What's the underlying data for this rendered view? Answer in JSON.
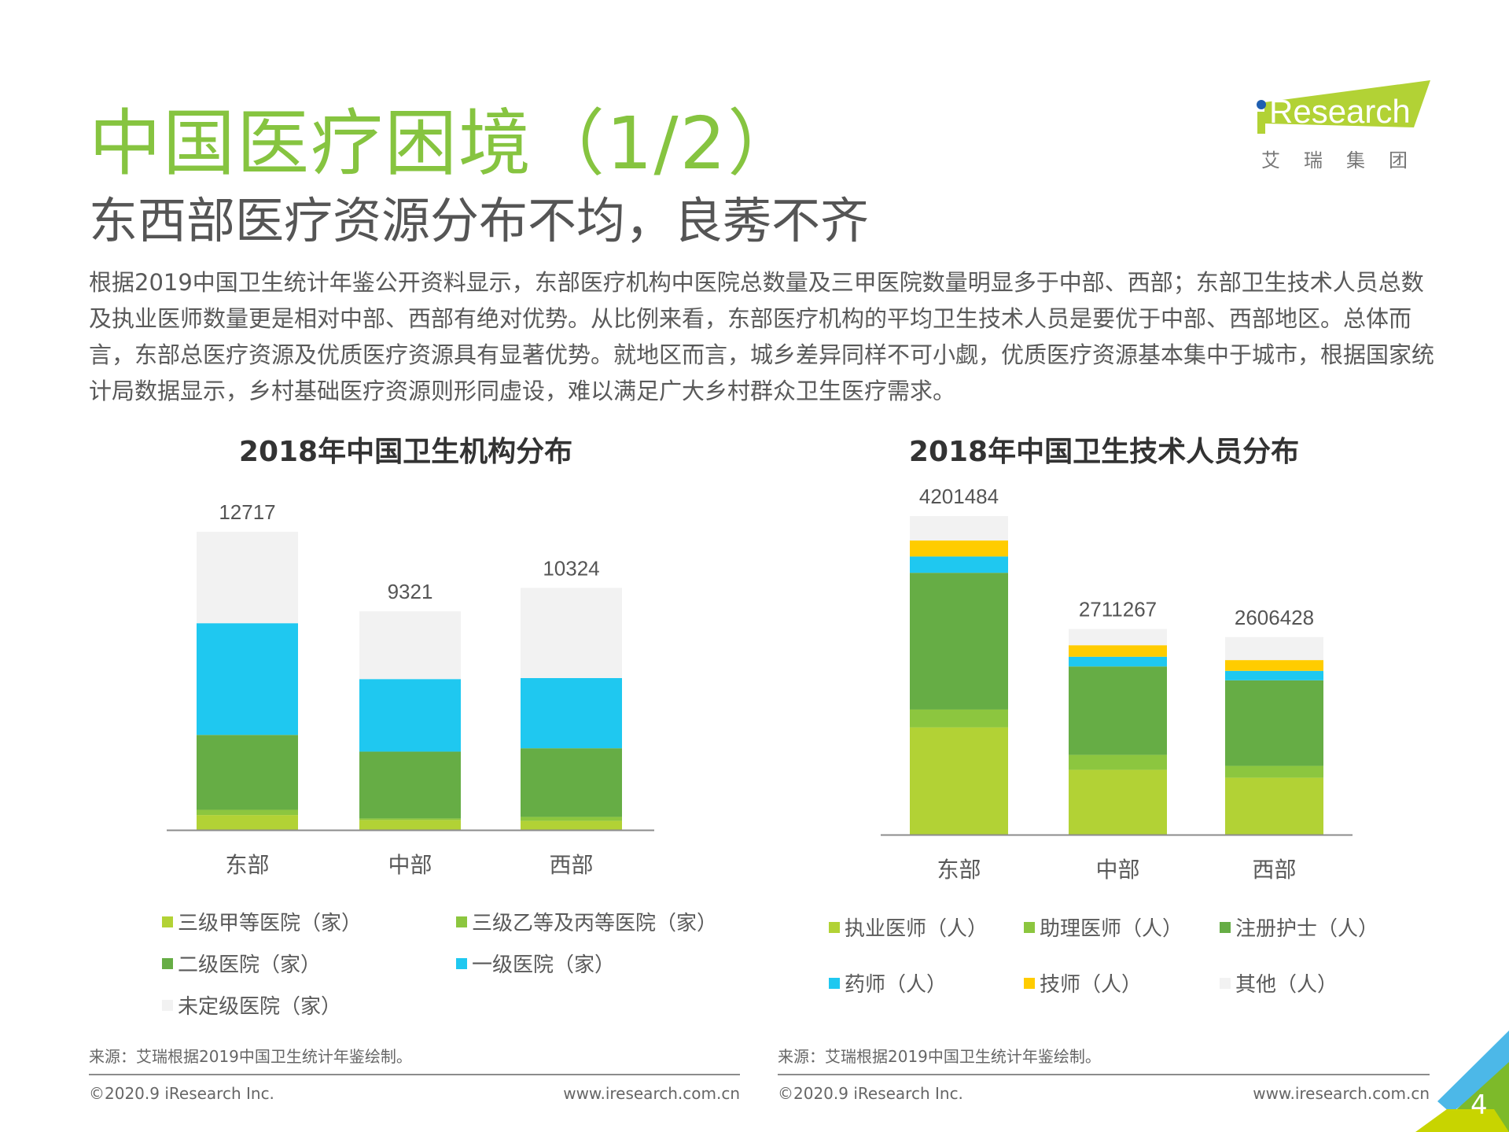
{
  "header": {
    "title": "中国医疗困境（1/2）",
    "subtitle": "东西部医疗资源分布不均，良莠不齐",
    "logo_text": "iResearch",
    "logo_subtext": "艾 瑞 集 团"
  },
  "body": {
    "paragraph": "根据2019中国卫生统计年鉴公开资料显示，东部医疗机构中医院总数量及三甲医院数量明显多于中部、西部；东部卫生技术人员总数及执业医师数量更是相对中部、西部有绝对优势。从比例来看，东部医疗机构的平均卫生技术人员是要优于中部、西部地区。总体而言，东部总医疗资源及优质医疗资源具有显著优势。就地区而言，城乡差异同样不可小觑，优质医疗资源基本集中于城市，根据国家统计局数据显示，乡村基础医疗资源则形同虚设，难以满足广大乡村群众卫生医疗需求。"
  },
  "chart_data": [
    {
      "type": "bar",
      "stacked": true,
      "title": "2018年中国卫生机构分布",
      "categories": [
        "东部",
        "中部",
        "西部"
      ],
      "totals": [
        12717,
        9321,
        10324
      ],
      "series": [
        {
          "name": "三级甲等医院（家）",
          "color": "#b2d235",
          "values": [
            634,
            423,
            389
          ]
        },
        {
          "name": "三级乙等及丙等医院（家）",
          "color": "#8cc63f",
          "values": [
            223,
            67,
            167
          ]
        },
        {
          "name": "二级医院（家）",
          "color": "#66ad45",
          "values": [
            3196,
            2850,
            2928
          ]
        },
        {
          "name": "一级医院（家）",
          "color": "#1fc8f0",
          "values": [
            4765,
            3095,
            2994
          ]
        },
        {
          "name": "未定级医院（家）",
          "color": "#f2f2f2",
          "values": [
            3899,
            2886,
            3846
          ]
        }
      ],
      "legend": "bottom",
      "grid": false,
      "source": "来源：艾瑞根据2019中国卫生统计年鉴绘制。"
    },
    {
      "type": "bar",
      "stacked": true,
      "title": "2018年中国卫生技术人员分布",
      "categories": [
        "东部",
        "中部",
        "西部"
      ],
      "totals": [
        4201484,
        2711267,
        2606428
      ],
      "series": [
        {
          "name": "执业医师（人）",
          "color": "#b2d235",
          "values": [
            1415000,
            855000,
            751000
          ]
        },
        {
          "name": "助理医师（人）",
          "color": "#8cc63f",
          "values": [
            235000,
            197000,
            156000
          ]
        },
        {
          "name": "注册护士（人）",
          "color": "#66ad45",
          "values": [
            1803000,
            1166000,
            1128000
          ]
        },
        {
          "name": "药师（人）",
          "color": "#1fc8f0",
          "values": [
            215000,
            128000,
            125000
          ]
        },
        {
          "name": "技师（人）",
          "color": "#ffcc00",
          "values": [
            211000,
            152000,
            142000
          ]
        },
        {
          "name": "其他（人）",
          "color": "#f2f2f2",
          "values": [
            322484,
            213267,
            304428
          ]
        }
      ],
      "legend": "bottom",
      "grid": false,
      "source": "来源：艾瑞根据2019中国卫生统计年鉴绘制。"
    }
  ],
  "footer": {
    "copyright": "©2020.9 iResearch Inc.",
    "website": "www.iresearch.com.cn",
    "page_number": "4"
  },
  "colors": {
    "title_green": "#86c440",
    "corner_blue": "#4cb8e8",
    "corner_green": "#7dba2a",
    "corner_yellow": "#c8d400"
  }
}
